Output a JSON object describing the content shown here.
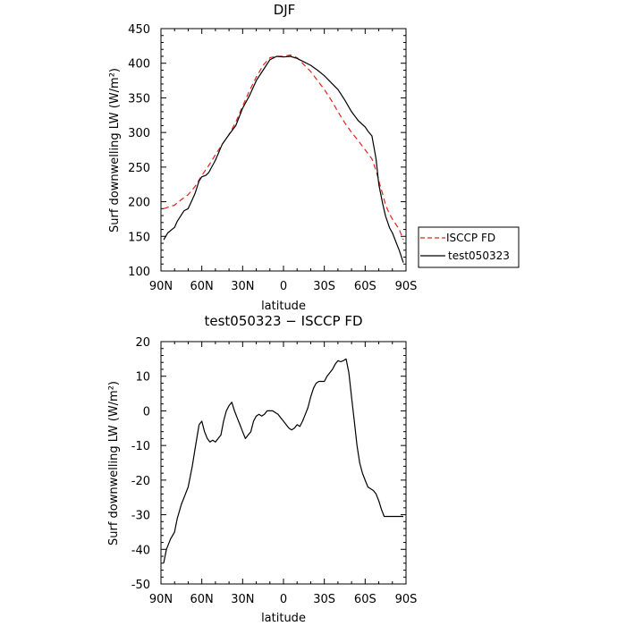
{
  "chart_data": [
    {
      "type": "line",
      "title": "DJF",
      "xlabel": "latitude",
      "ylabel": "Surf downwelling LW (W/m²)",
      "xlim": [
        90,
        -90
      ],
      "ylim": [
        100,
        450
      ],
      "xticks": [
        90,
        60,
        30,
        0,
        -30,
        -60,
        -90
      ],
      "xticklabels": [
        "90N",
        "60N",
        "30N",
        "0",
        "30S",
        "60S",
        "90S"
      ],
      "yticks": [
        100,
        150,
        200,
        250,
        300,
        350,
        400,
        450
      ],
      "legend_position": "right",
      "series": [
        {
          "name": "ISCCP FD",
          "style": "dashed",
          "color": "#e0231b",
          "x": [
            88,
            80,
            75,
            70,
            65,
            60,
            55,
            50,
            45,
            40,
            35,
            30,
            25,
            20,
            15,
            10,
            5,
            0,
            -5,
            -10,
            -15,
            -20,
            -25,
            -30,
            -35,
            -40,
            -45,
            -50,
            -55,
            -60,
            -65,
            -68,
            -70,
            -73,
            -75,
            -78,
            -80,
            -85,
            -88
          ],
          "y": [
            190,
            195,
            203,
            210,
            222,
            238,
            252,
            268,
            283,
            297,
            315,
            338,
            360,
            380,
            397,
            408,
            410,
            410,
            412,
            408,
            398,
            388,
            375,
            362,
            347,
            330,
            314,
            300,
            288,
            275,
            262,
            245,
            230,
            210,
            195,
            182,
            175,
            160,
            145
          ]
        },
        {
          "name": "test050323",
          "style": "solid",
          "color": "#000000",
          "x": [
            88,
            85,
            80,
            78,
            75,
            73,
            70,
            67,
            65,
            62,
            60,
            57,
            55,
            50,
            45,
            40,
            35,
            30,
            25,
            20,
            15,
            10,
            5,
            0,
            -5,
            -10,
            -15,
            -20,
            -25,
            -30,
            -35,
            -40,
            -45,
            -50,
            -55,
            -60,
            -62,
            -65,
            -68,
            -70,
            -73,
            -75,
            -78,
            -80,
            -83,
            -85,
            -88
          ],
          "y": [
            145,
            155,
            163,
            172,
            181,
            187,
            190,
            203,
            212,
            230,
            236,
            238,
            242,
            260,
            283,
            297,
            310,
            335,
            353,
            375,
            390,
            405,
            410,
            409,
            410,
            407,
            402,
            397,
            390,
            382,
            372,
            362,
            347,
            330,
            317,
            308,
            302,
            295,
            262,
            225,
            196,
            179,
            162,
            155,
            140,
            130,
            112
          ]
        }
      ]
    },
    {
      "type": "line",
      "title": "test050323 − ISCCP FD",
      "xlabel": "latitude",
      "ylabel": "Surf downwelling LW (W/m²)",
      "xlim": [
        90,
        -90
      ],
      "ylim": [
        -50,
        20
      ],
      "xticks": [
        90,
        60,
        30,
        0,
        -30,
        -60,
        -90
      ],
      "xticklabels": [
        "90N",
        "60N",
        "30N",
        "0",
        "30S",
        "60S",
        "90S"
      ],
      "yticks": [
        -50,
        -40,
        -30,
        -20,
        -10,
        0,
        10,
        20
      ],
      "series": [
        {
          "style": "solid",
          "color": "#000000",
          "x": [
            88,
            86,
            83,
            80,
            78,
            75,
            72,
            70,
            67,
            65,
            62,
            60,
            58,
            56,
            54,
            52,
            50,
            48,
            46,
            44,
            42,
            40,
            38,
            36,
            34,
            32,
            30,
            28,
            26,
            24,
            22,
            20,
            18,
            16,
            14,
            12,
            10,
            8,
            6,
            4,
            2,
            0,
            -2,
            -4,
            -6,
            -8,
            -10,
            -12,
            -14,
            -16,
            -18,
            -20,
            -22,
            -24,
            -26,
            -28,
            -30,
            -32,
            -34,
            -36,
            -38,
            -40,
            -42,
            -44,
            -46,
            -48,
            -50,
            -52,
            -54,
            -56,
            -58,
            -60,
            -62,
            -64,
            -66,
            -68,
            -70,
            -72,
            -74,
            -76,
            -78,
            -80,
            -82,
            -84,
            -86,
            -88
          ],
          "y": [
            -44,
            -40,
            -37,
            -35,
            -31,
            -27,
            -24,
            -22,
            -16,
            -11,
            -4,
            -3,
            -6,
            -8,
            -9,
            -8.5,
            -9,
            -8,
            -7,
            -3,
            0,
            1.5,
            2.5,
            0,
            -2,
            -4,
            -6,
            -8,
            -7,
            -6,
            -3,
            -1.5,
            -1,
            -1.5,
            -1,
            0,
            0,
            0,
            -0.5,
            -1,
            -2,
            -3,
            -4,
            -5,
            -5.5,
            -5,
            -4,
            -4.5,
            -3,
            -1,
            1,
            4,
            6.5,
            8,
            8.5,
            8.5,
            8.5,
            10,
            11,
            12,
            13.5,
            14.5,
            14.2,
            14.5,
            15,
            11,
            4,
            -3,
            -10,
            -15,
            -18,
            -20,
            -22,
            -22.5,
            -23,
            -24,
            -26,
            -28.5,
            -30.5,
            -30.5,
            -30.5,
            -30.5,
            -30.5,
            -30.5,
            -30.5,
            -30.5
          ]
        }
      ]
    }
  ]
}
